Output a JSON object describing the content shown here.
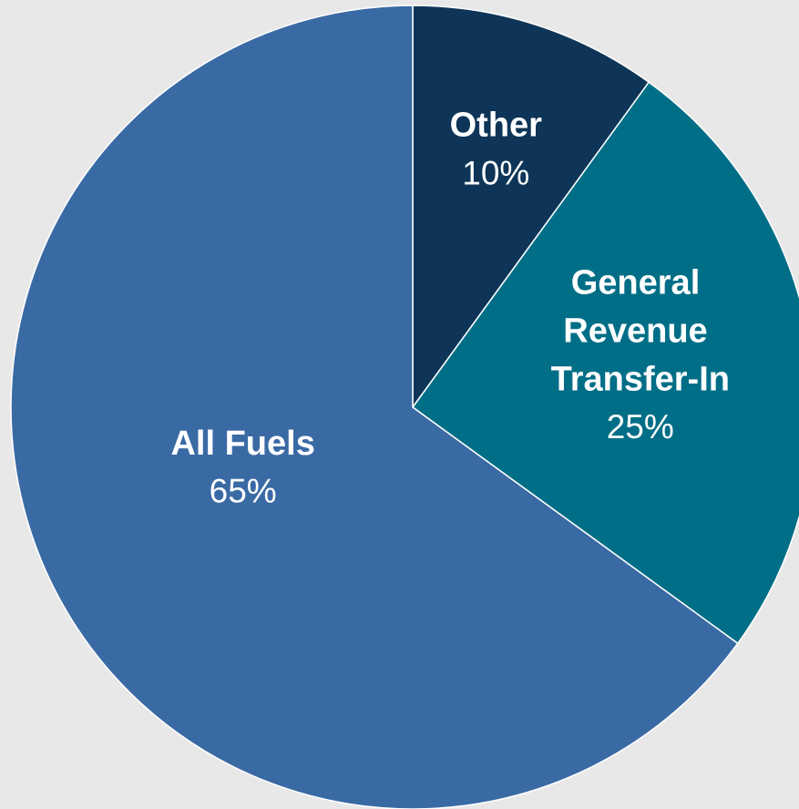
{
  "chart_data": {
    "type": "pie",
    "categories": [
      "Other",
      "General Revenue Transfer-In",
      "All Fuels"
    ],
    "values": [
      10,
      25,
      65
    ],
    "value_labels": [
      "10%",
      "25%",
      "65%"
    ],
    "colors": [
      "#0e3557",
      "#006e87",
      "#3a6aa4"
    ]
  }
}
